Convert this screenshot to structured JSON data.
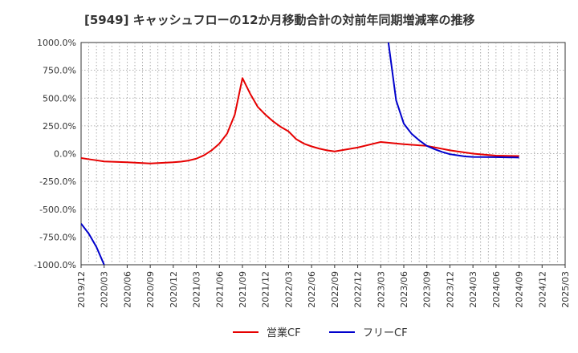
{
  "chart_data": {
    "type": "line",
    "title": "[5949]  キャッシュフローの12か月移動合計の対前年同期増減率の推移",
    "xlabel": "",
    "ylabel": "",
    "ylim": [
      -1000,
      1000
    ],
    "yticks": [
      1000,
      750,
      500,
      250,
      0,
      -250,
      -500,
      -750,
      -1000
    ],
    "ytick_labels": [
      "1000.0%",
      "750.0%",
      "500.0%",
      "250.0%",
      "0.0%",
      "-250.0%",
      "-500.0%",
      "-750.0%",
      "-1000.0%"
    ],
    "x_categories": [
      "2019/12",
      "2020/03",
      "2020/06",
      "2020/09",
      "2020/12",
      "2021/03",
      "2021/06",
      "2021/09",
      "2021/12",
      "2022/03",
      "2022/06",
      "2022/09",
      "2022/12",
      "2023/03",
      "2023/06",
      "2023/09",
      "2023/12",
      "2024/03",
      "2024/06",
      "2024/09",
      "2024/12",
      "2025/03"
    ],
    "grid": true,
    "legend_position": "bottom-center",
    "series": [
      {
        "name": "営業CF",
        "color": "#e60000",
        "points": [
          [
            "2019/12",
            -40
          ],
          [
            "2020/01",
            -50
          ],
          [
            "2020/02",
            -60
          ],
          [
            "2020/03",
            -70
          ],
          [
            "2020/06",
            -78
          ],
          [
            "2020/09",
            -88
          ],
          [
            "2020/12",
            -78
          ],
          [
            "2021/01",
            -72
          ],
          [
            "2021/02",
            -62
          ],
          [
            "2021/03",
            -45
          ],
          [
            "2021/04",
            -15
          ],
          [
            "2021/05",
            30
          ],
          [
            "2021/06",
            90
          ],
          [
            "2021/07",
            180
          ],
          [
            "2021/08",
            350
          ],
          [
            "2021/09",
            680
          ],
          [
            "2021/10",
            540
          ],
          [
            "2021/11",
            420
          ],
          [
            "2021/12",
            350
          ],
          [
            "2022/01",
            290
          ],
          [
            "2022/02",
            240
          ],
          [
            "2022/03",
            200
          ],
          [
            "2022/04",
            130
          ],
          [
            "2022/05",
            90
          ],
          [
            "2022/06",
            65
          ],
          [
            "2022/07",
            45
          ],
          [
            "2022/08",
            30
          ],
          [
            "2022/09",
            20
          ],
          [
            "2022/12",
            55
          ],
          [
            "2023/03",
            105
          ],
          [
            "2023/06",
            85
          ],
          [
            "2023/09",
            70
          ],
          [
            "2023/12",
            30
          ],
          [
            "2024/03",
            0
          ],
          [
            "2024/06",
            -18
          ],
          [
            "2024/09",
            -22
          ]
        ]
      },
      {
        "name": "フリーCF",
        "color": "#0000cc",
        "points": [
          [
            "2019/12",
            -630
          ],
          [
            "2020/01",
            -720
          ],
          [
            "2020/02",
            -840
          ],
          [
            "2020/03",
            -1000
          ],
          [
            "2023/04",
            1000
          ],
          [
            "2023/05",
            480
          ],
          [
            "2023/06",
            270
          ],
          [
            "2023/07",
            180
          ],
          [
            "2023/08",
            120
          ],
          [
            "2023/09",
            70
          ],
          [
            "2023/10",
            40
          ],
          [
            "2023/11",
            15
          ],
          [
            "2023/12",
            -5
          ],
          [
            "2024/01",
            -15
          ],
          [
            "2024/02",
            -25
          ],
          [
            "2024/03",
            -30
          ],
          [
            "2024/06",
            -32
          ],
          [
            "2024/09",
            -35
          ]
        ]
      }
    ]
  }
}
